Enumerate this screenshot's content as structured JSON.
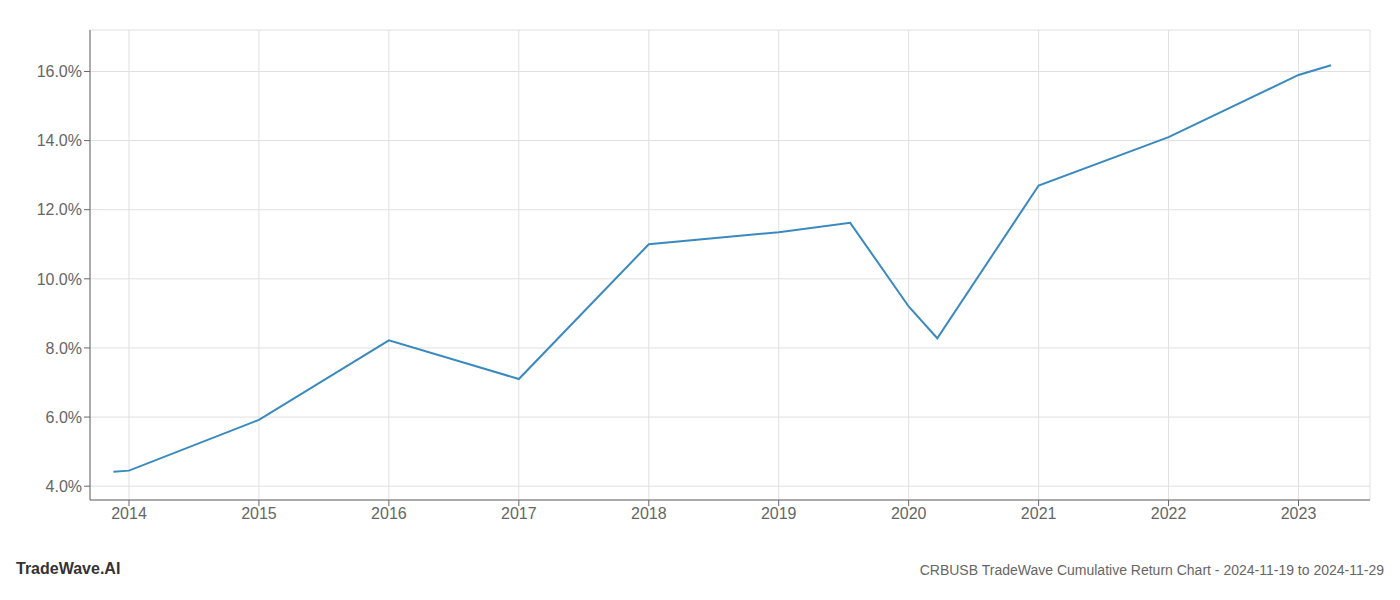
{
  "chart_data": {
    "type": "line",
    "title": "CRBUSB TradeWave Cumulative Return Chart - 2024-11-19 to 2024-11-29",
    "annotations": [
      "TradeWave.AI"
    ],
    "x": [
      2013.88,
      2014.0,
      2015.0,
      2016.0,
      2017.0,
      2018.0,
      2019.0,
      2019.55,
      2020.0,
      2020.22,
      2021.0,
      2022.0,
      2023.0,
      2023.25
    ],
    "values": [
      4.42,
      4.45,
      5.92,
      8.22,
      7.1,
      11.0,
      11.35,
      11.62,
      9.2,
      8.28,
      12.7,
      14.1,
      15.9,
      16.18
    ],
    "color": "#3a8abf",
    "xlim": [
      2013.7,
      2023.55
    ],
    "ylim": [
      3.6,
      17.2
    ],
    "xticks": [
      2014,
      2015,
      2016,
      2017,
      2018,
      2019,
      2020,
      2021,
      2022,
      2023
    ],
    "yticks": [
      {
        "value": 4.0,
        "label": "4.0%"
      },
      {
        "value": 6.0,
        "label": "6.0%"
      },
      {
        "value": 8.0,
        "label": "8.0%"
      },
      {
        "value": 10.0,
        "label": "10.0%"
      },
      {
        "value": 12.0,
        "label": "12.0%"
      },
      {
        "value": 14.0,
        "label": "14.0%"
      },
      {
        "value": 16.0,
        "label": "16.0%"
      }
    ],
    "grid": true
  }
}
